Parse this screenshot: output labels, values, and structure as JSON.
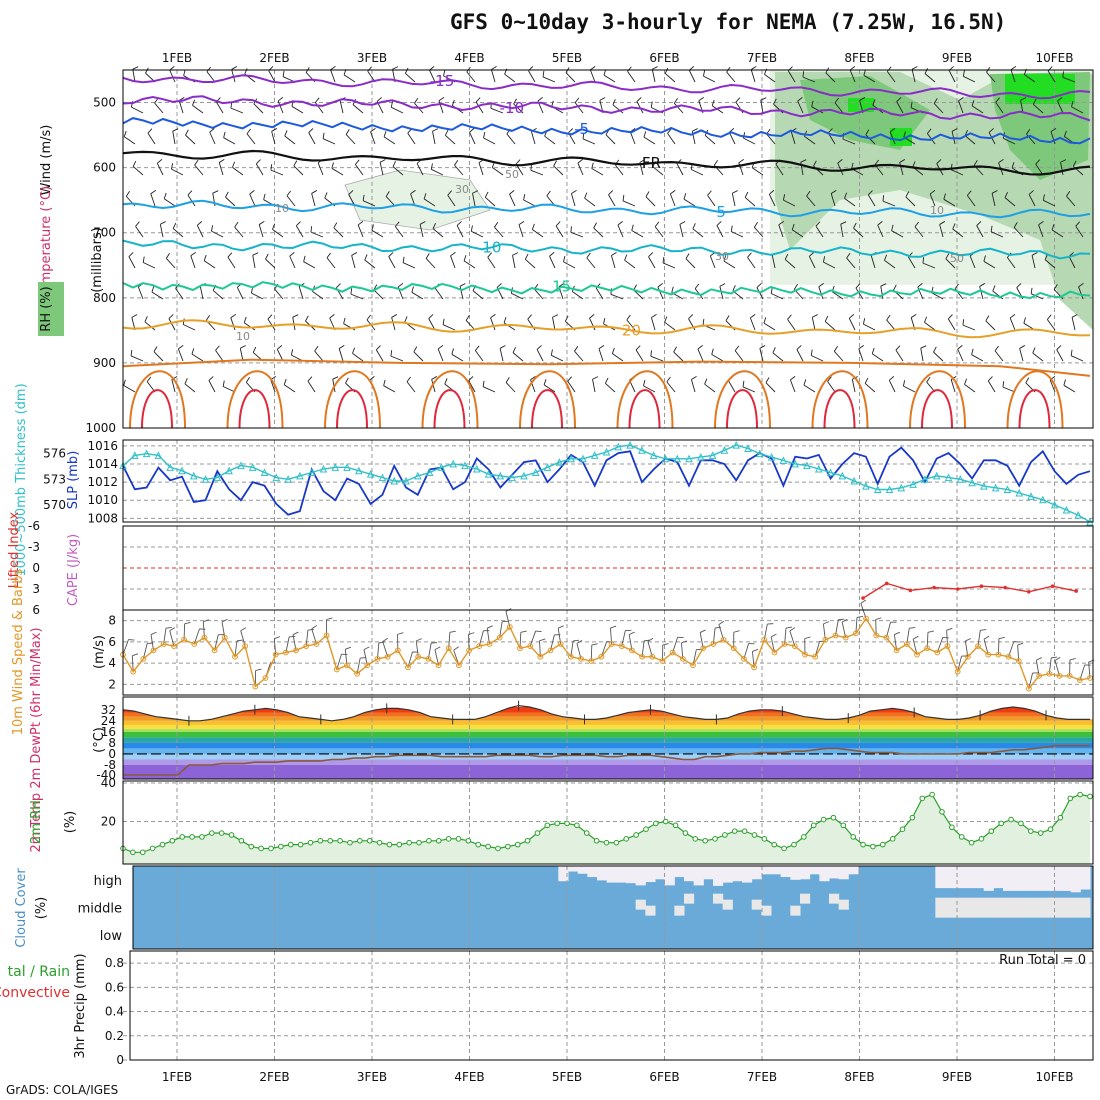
{
  "title": "GFS 0~10day 3-hourly for NEMA (7.25W, 16.5N)",
  "credit": "GrADS: COLA/IGES",
  "date_labels": [
    "1FEB",
    "2FEB",
    "3FEB",
    "4FEB",
    "5FEB",
    "6FEB",
    "7FEB",
    "8FEB",
    "9FEB",
    "10FEB"
  ],
  "run_total": "Run Total = 0",
  "colors": {
    "purple": "#8a2cc8",
    "blue": "#1e5adc",
    "black": "#111111",
    "lightblue": "#1ea0e6",
    "teal": "#16b4c8",
    "green": "#1ec896",
    "orange": "#e6a028",
    "darkorange": "#e07820",
    "red": "#e0283c",
    "cyan": "#30c0c8",
    "slp": "#1838c8",
    "wind": "#e09828",
    "rh": "#2aa02a",
    "cloud": "#6aaad8",
    "lifted": "#e03030"
  },
  "chart_data": [
    {
      "type": "heatmap",
      "panel": "upper-air",
      "y_axis_label": "(millibars)",
      "legend_label_1": "Wind (m/s)",
      "legend_label_2": "Temperature (°C)",
      "legend_label_3": "RH (%)",
      "yticks": [
        "500",
        "600",
        "700",
        "800",
        "900",
        "1000"
      ],
      "ylim": [
        1000,
        450
      ],
      "temperature_contours": [
        {
          "label": "-15",
          "pressure": 462,
          "color": "purple"
        },
        {
          "label": "-10",
          "pressure": 495,
          "color": "purple"
        },
        {
          "label": "-5",
          "pressure": 530,
          "color": "blue"
        },
        {
          "label": "FR",
          "pressure": 578,
          "color": "black"
        },
        {
          "label": "5",
          "pressure": 657,
          "color": "lightblue"
        },
        {
          "label": "10",
          "pressure": 718,
          "color": "teal"
        },
        {
          "label": "15",
          "pressure": 780,
          "color": "green"
        },
        {
          "label": "20",
          "pressure": 840,
          "color": "orange"
        }
      ],
      "rh_contour_labels": [
        "10",
        "30",
        "50"
      ]
    },
    {
      "type": "line",
      "panel": "slp-thickness",
      "ylabel_left": "1000~500mb Thickness (dm)",
      "ylabel_right": "SLP (mb)",
      "thickness_ticks": [
        "576",
        "573",
        "570"
      ],
      "slp_ticks": [
        "1016",
        "1014",
        "1012",
        "1010",
        "1008"
      ],
      "series": [
        {
          "name": "SLP",
          "unit": "mb",
          "values": [
            1013.8,
            1011.2,
            1011.4,
            1013.6,
            1012.2,
            1012.6,
            1009.8,
            1010.0,
            1013.2,
            1011.2,
            1010.0,
            1012.0,
            1011.6,
            1009.6,
            1008.4,
            1008.8,
            1013.4,
            1011.0,
            1010.0,
            1012.4,
            1011.8,
            1009.6,
            1010.6,
            1013.8,
            1011.4,
            1010.6,
            1013.4,
            1013.6,
            1011.2,
            1012.0,
            1014.6,
            1013.4,
            1011.4,
            1012.8,
            1014.2,
            1014.4,
            1012.0,
            1013.4,
            1015.0,
            1014.2,
            1011.6,
            1014.4,
            1015.2,
            1015.4,
            1012.0,
            1013.4,
            1014.6,
            1014.2,
            1011.6,
            1014.4,
            1014.4,
            1014.0,
            1012.2,
            1014.4,
            1015.2,
            1014.6,
            1011.6,
            1014.8,
            1014.6,
            1015.0,
            1012.4,
            1014.0,
            1015.2,
            1014.8,
            1011.8,
            1014.8,
            1015.8,
            1014.4,
            1012.0,
            1014.6,
            1015.2,
            1014.0,
            1012.4,
            1014.4,
            1014.4,
            1013.8,
            1011.6,
            1014.2,
            1015.4,
            1013.2,
            1011.8,
            1012.8,
            1013.2
          ]
        },
        {
          "name": "Thickness",
          "unit": "dm",
          "values": [
            574.6,
            575.8,
            576.0,
            575.8,
            574.4,
            574.0,
            573.4,
            573.0,
            573.2,
            574.0,
            574.6,
            574.4,
            573.8,
            573.2,
            573.0,
            573.4,
            573.8,
            574.2,
            574.4,
            574.4,
            574.0,
            573.6,
            573.2,
            572.8,
            572.8,
            573.4,
            573.8,
            574.4,
            574.8,
            574.6,
            574.2,
            573.6,
            573.4,
            573.2,
            573.4,
            573.8,
            574.4,
            575.0,
            575.4,
            575.4,
            575.8,
            576.2,
            576.8,
            577.0,
            576.4,
            575.8,
            575.4,
            575.4,
            575.4,
            575.6,
            575.8,
            576.4,
            577.0,
            576.6,
            576.0,
            575.6,
            575.2,
            574.8,
            574.6,
            574.2,
            573.8,
            573.4,
            572.8,
            572.2,
            571.8,
            571.8,
            572.0,
            572.4,
            573.0,
            573.4,
            573.2,
            573.0,
            572.6,
            572.2,
            572.0,
            571.8,
            571.4,
            571.0,
            570.6,
            570.0,
            569.4,
            568.8,
            568.0
          ]
        }
      ]
    },
    {
      "type": "line",
      "panel": "cape-lifted",
      "ylabel_left": "Lifted Index",
      "ylabel_right": "CAPE (J/kg)",
      "yticks": [
        "-6",
        "-3",
        "0",
        "3",
        "6"
      ],
      "ylim": [
        -6,
        6
      ],
      "series": [
        {
          "name": "Lifted Index",
          "start_index": 75,
          "values": [
            4.3,
            2.2,
            3.2,
            2.8,
            3.0,
            2.6,
            2.8,
            3.4,
            2.6,
            3.3
          ]
        }
      ]
    },
    {
      "type": "line",
      "panel": "10m-wind",
      "ylabel_left": "10m Wind Speed & Barbs",
      "ylabel_right": "(m/s)",
      "yticks": [
        "2",
        "4",
        "6",
        "8"
      ],
      "ylim": [
        1,
        9
      ],
      "series": [
        {
          "name": "10m Wind Speed",
          "unit": "m/s",
          "values": [
            4.8,
            3.2,
            4.4,
            5.2,
            5.8,
            5.6,
            6.2,
            5.8,
            6.4,
            5.2,
            6.4,
            4.6,
            5.6,
            1.8,
            2.6,
            4.8,
            5.0,
            5.2,
            5.6,
            5.8,
            6.6,
            3.4,
            3.8,
            3.0,
            3.8,
            4.4,
            4.6,
            5.2,
            3.6,
            4.6,
            4.4,
            3.8,
            5.4,
            3.8,
            5.2,
            5.6,
            5.8,
            6.4,
            7.4,
            5.4,
            5.6,
            4.6,
            5.2,
            5.8,
            4.6,
            4.4,
            4.2,
            4.6,
            5.8,
            5.6,
            5.2,
            4.6,
            4.6,
            4.2,
            5.0,
            4.4,
            3.8,
            5.4,
            5.8,
            6.2,
            5.4,
            4.4,
            3.6,
            6.2,
            5.0,
            5.8,
            5.6,
            4.8,
            4.6,
            6.2,
            6.6,
            6.4,
            6.8,
            8.2,
            6.6,
            6.4,
            5.2,
            5.8,
            4.8,
            5.4,
            5.0,
            5.6,
            3.2,
            4.6,
            5.6,
            4.8,
            4.8,
            4.6,
            4.2,
            1.6,
            2.8,
            3.0,
            2.8,
            2.8,
            2.4,
            2.6
          ]
        }
      ]
    },
    {
      "type": "area",
      "panel": "2m-temp",
      "ylabel_left": "2m Temp 2m DewPt (6hr Min/Max)",
      "ylabel_right": "(°C)",
      "yticks": [
        "32",
        "24",
        "16",
        "8",
        "0",
        "-8",
        "-40"
      ],
      "series": [
        {
          "name": "2m Temp",
          "unit": "°C",
          "values": [
            32,
            31,
            29,
            27,
            26,
            25,
            24,
            24,
            25,
            27,
            29,
            31,
            32,
            33,
            32,
            30,
            27,
            26,
            25,
            24,
            25,
            27,
            30,
            32,
            33,
            33,
            32,
            30,
            27,
            26,
            25,
            25,
            25,
            27,
            30,
            33,
            35,
            34,
            32,
            29,
            27,
            26,
            25,
            25,
            26,
            28,
            30,
            31,
            32,
            31,
            29,
            27,
            26,
            25,
            25,
            26,
            29,
            31,
            32,
            32,
            31,
            29,
            27,
            26,
            25,
            25,
            26,
            28,
            31,
            32,
            33,
            32,
            30,
            27,
            26,
            25,
            25,
            26,
            28,
            31,
            33,
            34,
            33,
            31,
            28,
            26,
            25,
            25,
            25
          ]
        },
        {
          "name": "2m DewPt",
          "unit": "°C",
          "values": [
            -10,
            -10,
            -9,
            -9,
            -9,
            -9,
            -8,
            -8,
            -8,
            -7,
            -7,
            -7,
            -6,
            -6,
            -6,
            -5,
            -5,
            -5,
            -5,
            -4,
            -4,
            -3,
            -3,
            -2,
            -2,
            -1,
            -1,
            -1,
            -1,
            -2,
            -2,
            -2,
            -2,
            -2,
            -1,
            -1,
            -1,
            -1,
            -2,
            -2,
            -1,
            -1,
            -1,
            -1,
            -2,
            -2,
            -1,
            -1,
            -1,
            -2,
            -3,
            -4,
            -4,
            -2,
            -2,
            -1,
            0,
            0,
            1,
            1,
            1,
            2,
            2,
            3,
            4,
            4,
            3,
            2,
            1,
            1,
            1,
            0,
            0,
            0,
            0,
            0,
            0,
            1,
            1,
            1,
            2,
            3,
            3,
            4,
            5,
            6,
            6,
            6,
            6
          ]
        }
      ]
    },
    {
      "type": "area",
      "panel": "2m-rh",
      "ylabel_left": "2m RH",
      "ylabel_right": "(%)",
      "yticks": [
        "20",
        "40"
      ],
      "series": [
        {
          "name": "2m RH",
          "unit": "%",
          "values": [
            6,
            4,
            4,
            6,
            8,
            10,
            12,
            12,
            12,
            14,
            14,
            13,
            10,
            7,
            6,
            6,
            7,
            8,
            8,
            9,
            10,
            10,
            10,
            9,
            10,
            10,
            9,
            8,
            8,
            9,
            9,
            10,
            10,
            11,
            11,
            10,
            8,
            7,
            6,
            7,
            8,
            10,
            14,
            18,
            19,
            19,
            18,
            14,
            10,
            9,
            9,
            11,
            13,
            16,
            19,
            20,
            18,
            14,
            11,
            10,
            11,
            13,
            15,
            15,
            13,
            11,
            8,
            6,
            8,
            12,
            18,
            21,
            22,
            18,
            12,
            8,
            7,
            8,
            11,
            16,
            22,
            32,
            34,
            25,
            17,
            12,
            9,
            11,
            15,
            19,
            21,
            19,
            15,
            14,
            16,
            22,
            32,
            34,
            33
          ]
        }
      ]
    },
    {
      "type": "heatmap",
      "panel": "cloud-cover",
      "ylabel_left": "Cloud Cover",
      "ylabel_right": "(%)",
      "row_labels": [
        "high",
        "middle",
        "low"
      ],
      "rows": {
        "high": [
          0,
          0,
          0,
          0,
          0,
          0,
          0,
          0,
          0,
          0,
          0,
          0,
          0,
          0,
          0,
          0,
          0,
          0,
          0,
          0,
          0,
          0,
          0,
          0,
          0,
          0,
          0,
          0,
          0,
          0,
          0,
          0,
          0,
          0,
          0,
          0,
          0,
          0,
          0,
          0,
          0,
          0,
          0,
          0,
          55,
          20,
          28,
          40,
          52,
          60,
          60,
          62,
          70,
          58,
          48,
          70,
          40,
          55,
          70,
          48,
          72,
          60,
          55,
          60,
          48,
          30,
          30,
          40,
          50,
          48,
          30,
          55,
          45,
          48,
          30,
          0,
          0,
          0,
          0,
          0,
          0,
          0,
          0,
          80,
          80,
          80,
          80,
          80,
          90,
          80,
          90,
          90,
          90,
          90,
          90,
          90,
          90,
          95,
          85
        ],
        "middle": [
          0,
          0,
          0,
          0,
          0,
          0,
          0,
          0,
          0,
          0,
          0,
          0,
          0,
          0,
          0,
          0,
          0,
          0,
          0,
          0,
          0,
          0,
          0,
          0,
          0,
          0,
          0,
          0,
          0,
          0,
          0,
          0,
          0,
          0,
          0,
          0,
          0,
          0,
          0,
          0,
          0,
          0,
          0,
          0,
          0,
          0,
          0,
          0,
          0,
          0,
          0,
          0,
          0,
          0,
          0,
          0,
          0,
          0,
          0,
          0,
          0,
          0,
          0,
          0,
          0,
          0,
          0,
          0,
          0,
          0,
          0,
          0,
          0,
          0,
          0,
          0,
          0,
          0,
          0,
          0,
          0,
          0,
          0,
          0,
          0,
          0,
          0,
          0,
          0,
          0,
          0,
          0,
          0,
          0,
          0,
          0,
          0,
          0,
          0
        ],
        "low": [
          0,
          0,
          0,
          0,
          0,
          0,
          0,
          0,
          0,
          0,
          0,
          0,
          0,
          0,
          0,
          0,
          0,
          0,
          0,
          0,
          0,
          0,
          0,
          0,
          0,
          0,
          0,
          0,
          0,
          0,
          0,
          0,
          0,
          0,
          0,
          0,
          0,
          0,
          0,
          0,
          0,
          0,
          0,
          0,
          0,
          0,
          0,
          0,
          0,
          0,
          0,
          0,
          0,
          0,
          0,
          0,
          0,
          0,
          0,
          0,
          0,
          0,
          0,
          0,
          0,
          0,
          0,
          0,
          0,
          0,
          0,
          0,
          0,
          0,
          0,
          0,
          0,
          0,
          0,
          0,
          0,
          0,
          0,
          0,
          0,
          0,
          0,
          0,
          0,
          0,
          0,
          0,
          0,
          0,
          0,
          0,
          0,
          0,
          0
        ]
      }
    },
    {
      "type": "bar",
      "panel": "precip",
      "ylabel_left": "Total / Rain Convective",
      "ylabel_right": "3hr Precip (mm)",
      "yticks": [
        "0",
        "0.2",
        "0.4",
        "0.6",
        "0.8"
      ],
      "ylim": [
        0,
        0.9
      ],
      "series": [
        {
          "name": "3hr Precip",
          "unit": "mm",
          "values": []
        }
      ]
    }
  ]
}
